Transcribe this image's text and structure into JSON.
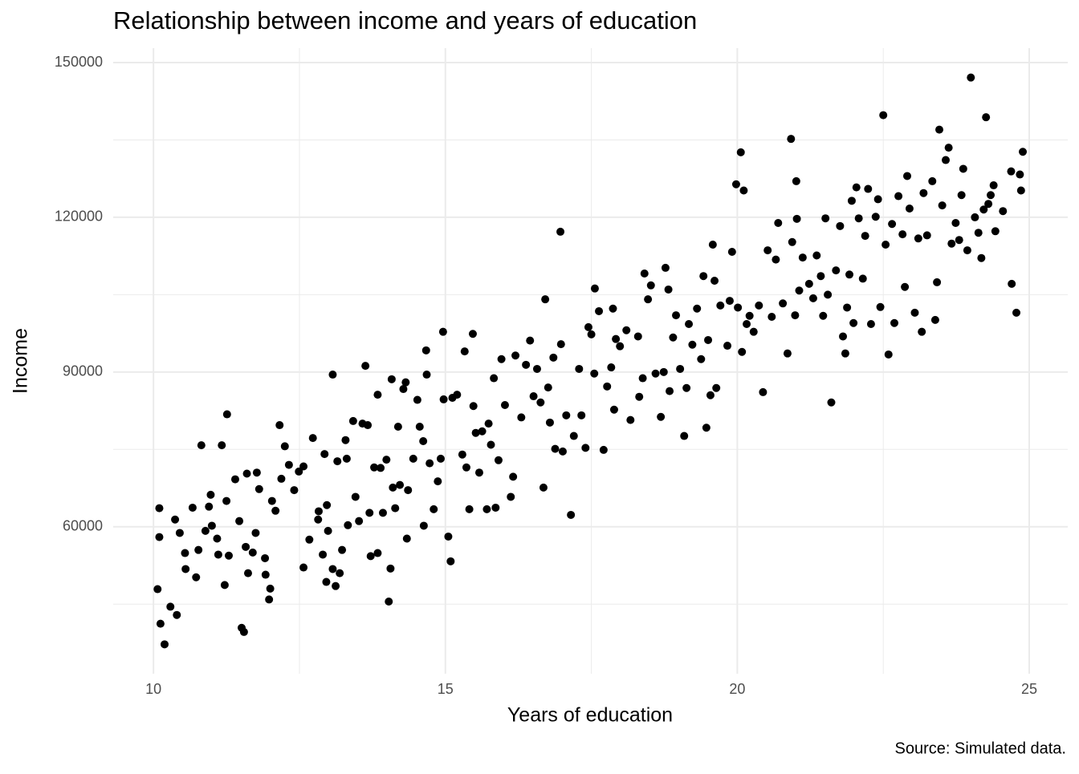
{
  "chart_data": {
    "type": "scatter",
    "title": "Relationship between income and years of education",
    "x_label": "Years of education",
    "y_label": "Income",
    "caption": "Source: Simulated data.",
    "xlim": [
      9.31,
      25.66
    ],
    "ylim": [
      31500,
      152800
    ],
    "xticks": [
      10,
      15,
      20,
      25
    ],
    "yticks": [
      60000,
      90000,
      120000,
      150000
    ],
    "x_minor_grid": [
      12.5,
      17.5,
      22.5
    ],
    "y_minor_grid": [
      45000,
      75000,
      105000,
      135000
    ],
    "grid": true,
    "color": "#000000",
    "x": [
      10.07,
      10.1,
      10.1,
      10.12,
      10.19,
      10.29,
      10.37,
      10.4,
      10.45,
      10.54,
      10.55,
      10.67,
      10.73,
      10.77,
      10.82,
      10.89,
      10.95,
      10.98,
      11.0,
      11.09,
      11.11,
      11.17,
      11.22,
      11.26,
      11.25,
      11.29,
      11.4,
      11.47,
      11.51,
      11.55,
      11.58,
      11.6,
      11.62,
      11.7,
      11.75,
      11.77,
      11.81,
      11.91,
      11.92,
      11.98,
      12.0,
      12.03,
      12.09,
      12.16,
      12.19,
      12.25,
      12.32,
      12.41,
      12.49,
      12.57,
      12.57,
      12.67,
      12.73,
      12.82,
      12.83,
      12.9,
      12.93,
      12.96,
      12.97,
      12.99,
      13.07,
      13.07,
      13.12,
      13.15,
      13.19,
      13.23,
      13.29,
      13.31,
      13.33,
      13.42,
      13.46,
      13.52,
      13.58,
      13.63,
      13.67,
      13.7,
      13.72,
      13.78,
      13.84,
      13.84,
      13.89,
      13.93,
      13.99,
      14.03,
      14.06,
      14.08,
      14.1,
      14.14,
      14.19,
      14.22,
      14.28,
      14.32,
      14.34,
      14.36,
      14.45,
      14.52,
      14.56,
      14.62,
      14.63,
      14.67,
      14.68,
      14.73,
      14.8,
      14.87,
      14.92,
      14.96,
      14.97,
      15.05,
      15.09,
      15.12,
      15.2,
      15.29,
      15.33,
      15.36,
      15.41,
      15.47,
      15.48,
      15.52,
      15.58,
      15.63,
      15.71,
      15.74,
      15.78,
      15.83,
      15.86,
      15.91,
      15.96,
      16.02,
      16.12,
      16.16,
      16.2,
      16.3,
      16.38,
      16.45,
      16.51,
      16.57,
      16.63,
      16.68,
      16.71,
      16.76,
      16.79,
      16.85,
      16.88,
      16.97,
      16.98,
      17.01,
      17.07,
      17.15,
      17.2,
      17.29,
      17.33,
      17.4,
      17.45,
      17.5,
      17.55,
      17.56,
      17.63,
      17.71,
      17.77,
      17.84,
      17.87,
      17.89,
      17.92,
      17.99,
      18.1,
      18.17,
      18.3,
      18.32,
      18.38,
      18.41,
      18.47,
      18.52,
      18.6,
      18.69,
      18.74,
      18.77,
      18.82,
      18.84,
      18.9,
      18.95,
      19.02,
      19.09,
      19.13,
      19.17,
      19.23,
      19.31,
      19.38,
      19.42,
      19.47,
      19.5,
      19.54,
      19.58,
      19.61,
      19.64,
      19.71,
      19.83,
      19.87,
      19.91,
      19.98,
      20.01,
      20.06,
      20.08,
      20.11,
      20.16,
      20.21,
      20.28,
      20.37,
      20.44,
      20.52,
      20.59,
      20.66,
      20.7,
      20.78,
      20.86,
      20.92,
      20.94,
      20.99,
      21.01,
      21.02,
      21.06,
      21.12,
      21.23,
      21.3,
      21.36,
      21.43,
      21.47,
      21.51,
      21.55,
      21.61,
      21.69,
      21.76,
      21.81,
      21.85,
      21.88,
      21.92,
      21.96,
      21.99,
      22.04,
      22.08,
      22.15,
      22.19,
      22.24,
      22.29,
      22.37,
      22.41,
      22.45,
      22.5,
      22.54,
      22.59,
      22.65,
      22.69,
      22.76,
      22.83,
      22.87,
      22.91,
      22.95,
      23.04,
      23.1,
      23.16,
      23.19,
      23.25,
      23.34,
      23.39,
      23.42,
      23.46,
      23.51,
      23.57,
      23.62,
      23.67,
      23.74,
      23.8,
      23.84,
      23.87,
      23.94,
      24.0,
      24.07,
      24.13,
      24.18,
      24.22,
      24.26,
      24.3,
      24.34,
      24.39,
      24.42,
      24.55,
      24.69,
      24.7,
      24.78,
      24.84,
      24.86,
      24.89
    ],
    "values": [
      47900,
      63600,
      58000,
      41200,
      37200,
      44500,
      61400,
      42900,
      58800,
      54900,
      51800,
      63700,
      50200,
      55500,
      75800,
      59200,
      63900,
      66200,
      60200,
      57700,
      54600,
      75800,
      48700,
      81800,
      65000,
      54400,
      69200,
      61100,
      40400,
      39600,
      56100,
      70300,
      51000,
      55000,
      58800,
      70500,
      67300,
      53900,
      50700,
      45900,
      48000,
      65000,
      63100,
      79700,
      69300,
      75600,
      72000,
      67100,
      70700,
      71700,
      52100,
      57500,
      77200,
      61400,
      63000,
      54600,
      74100,
      49300,
      64200,
      59200,
      89500,
      51800,
      48500,
      72700,
      51000,
      55500,
      76800,
      73200,
      60300,
      80500,
      65800,
      61100,
      80000,
      91200,
      79700,
      62700,
      54300,
      71500,
      85600,
      54900,
      71400,
      62700,
      73000,
      45500,
      51900,
      88600,
      67600,
      63600,
      79400,
      68100,
      86700,
      88000,
      57700,
      67100,
      73200,
      84600,
      79400,
      76600,
      60200,
      94200,
      89500,
      72300,
      63400,
      68800,
      73200,
      97800,
      84700,
      58100,
      53300,
      85000,
      85600,
      74000,
      94000,
      71500,
      63400,
      97400,
      83400,
      78200,
      70500,
      78500,
      63400,
      80000,
      75900,
      88800,
      63700,
      72900,
      92500,
      83600,
      65800,
      69700,
      93200,
      81200,
      91400,
      96100,
      85300,
      90600,
      84100,
      67600,
      104100,
      87000,
      80200,
      92800,
      75100,
      117200,
      95400,
      74600,
      81600,
      62300,
      77600,
      90600,
      81600,
      75300,
      98700,
      97300,
      89700,
      106200,
      101800,
      74900,
      87200,
      90900,
      102300,
      82700,
      96400,
      95000,
      98100,
      80700,
      96900,
      85200,
      88800,
      109100,
      104100,
      106800,
      89700,
      81300,
      90000,
      110200,
      106000,
      86300,
      96700,
      101000,
      90600,
      77600,
      86900,
      99300,
      95300,
      102300,
      92500,
      108600,
      79200,
      96200,
      85500,
      114700,
      107700,
      86900,
      102900,
      95100,
      103800,
      113300,
      126400,
      102500,
      132600,
      93900,
      125200,
      99300,
      100900,
      97800,
      102900,
      86100,
      113600,
      100700,
      111800,
      118900,
      103300,
      93600,
      135200,
      115200,
      101000,
      127000,
      119700,
      105800,
      112200,
      107100,
      104300,
      112600,
      108600,
      100900,
      119800,
      105000,
      84100,
      109700,
      118300,
      96900,
      93600,
      102500,
      108900,
      123200,
      99500,
      125800,
      119800,
      108100,
      116400,
      125500,
      99300,
      120100,
      123500,
      102600,
      139800,
      114700,
      93400,
      118700,
      99500,
      124100,
      116700,
      106500,
      128000,
      121700,
      101500,
      115900,
      97800,
      124700,
      116500,
      127000,
      100100,
      107400,
      137000,
      122300,
      131100,
      133500,
      114900,
      118900,
      115600,
      124300,
      129400,
      113600,
      147100,
      120000,
      117000,
      112100,
      121500,
      139400,
      122600,
      124300,
      126200,
      117300,
      121200,
      128900,
      107100,
      101500,
      128300,
      125200,
      132700
    ]
  }
}
